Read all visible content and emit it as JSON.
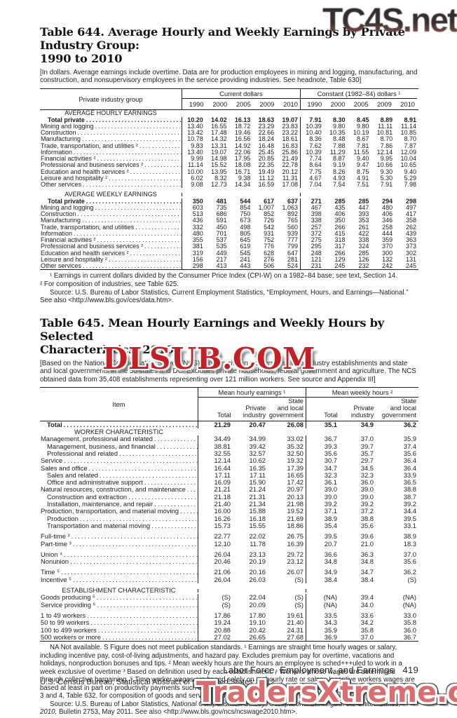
{
  "watermarks": {
    "top": "TC4S.net",
    "middle": "DLSUB.COM",
    "bottom": "TradersXtreme.com"
  },
  "page": {
    "footer_right": "Labor Force, Employment, and Earnings",
    "page_number": "419",
    "footer_left": "U.S. Census Bureau, Statistical Abstract of the United States: 2012"
  },
  "table644": {
    "title_line1": "Table 644. Average Hourly and Weekly Earnings by Private Industry Group:",
    "title_line2": "1990 to 2010",
    "headnote": "[In dollars. Average earnings include overtime. Data are for production employees in mining and logging, manufacturing, and construction, and nonsupervisory employees in the service providing industries. See headnote, Table 630]",
    "stub_header": "Private industry group",
    "group1": "Current dollars",
    "group2": "Constant (1982–84) dollars ¹",
    "years": [
      "1990",
      "2000",
      "2005",
      "2009",
      "2010"
    ],
    "sections": [
      {
        "header": "AVERAGE HOURLY EARNINGS",
        "rows": [
          {
            "label": "Total private",
            "bold": true,
            "indent": true,
            "values": [
              "10.20",
              "14.02",
              "16.13",
              "18.63",
              "19.07",
              "7.91",
              "8.30",
              "8.45",
              "8.89",
              "8.91"
            ]
          },
          {
            "label": "Mining and logging",
            "values": [
              "13.40",
              "16.55",
              "18.72",
              "23.29",
              "23.83",
              "10.39",
              "9.80",
              "9.80",
              "11.11",
              "11.14"
            ]
          },
          {
            "label": "Construction",
            "values": [
              "13.42",
              "17.48",
              "19.46",
              "22.66",
              "23.22",
              "10.40",
              "10.35",
              "10.19",
              "10.81",
              "10.85"
            ]
          },
          {
            "label": "Manufacturing",
            "values": [
              "10.78",
              "14.32",
              "16.56",
              "18.24",
              "18.61",
              "8.36",
              "8.48",
              "8.67",
              "8.70",
              "8.70"
            ]
          },
          {
            "label": "Trade, transportation, and utilities ²",
            "values": [
              "9.83",
              "13.31",
              "14.92",
              "16.48",
              "16.83",
              "7.62",
              "7.88",
              "7.81",
              "7.86",
              "7.87"
            ]
          },
          {
            "label": "Information",
            "values": [
              "13.40",
              "19.07",
              "22.06",
              "25.45",
              "25.86",
              "10.39",
              "11.29",
              "11.55",
              "12.14",
              "12.09"
            ]
          },
          {
            "label": "Financial activities ²",
            "values": [
              "9.99",
              "14.98",
              "17.95",
              "20.85",
              "21.49",
              "7.74",
              "8.87",
              "9.40",
              "9.95",
              "10.04"
            ]
          },
          {
            "label": "Professional and business services ²",
            "values": [
              "11.14",
              "15.52",
              "18.08",
              "22.35",
              "22.78",
              "8.64",
              "9.19",
              "9.47",
              "10.66",
              "10.65"
            ]
          },
          {
            "label": "Education and health services ²",
            "values": [
              "10.00",
              "13.95",
              "16.71",
              "19.49",
              "20.12",
              "7.75",
              "8.26",
              "8.75",
              "9.30",
              "9.40"
            ]
          },
          {
            "label": "Leisure and hospitality ²",
            "values": [
              "6.02",
              "8.32",
              "9.38",
              "11.12",
              "11.31",
              "4.67",
              "4.93",
              "4.91",
              "5.30",
              "5.29"
            ]
          },
          {
            "label": "Other services",
            "values": [
              "9.08",
              "12.73",
              "14.34",
              "16.59",
              "17.08",
              "7.04",
              "7.54",
              "7.51",
              "7.91",
              "7.98"
            ]
          }
        ]
      },
      {
        "header": "AVERAGE WEEKLY EARNINGS",
        "gap": true,
        "rows": [
          {
            "label": "Total private",
            "bold": true,
            "indent": true,
            "values": [
              "350",
              "481",
              "544",
              "617",
              "637",
              "271",
              "285",
              "285",
              "294",
              "298"
            ]
          },
          {
            "label": "Mining and logging",
            "values": [
              "603",
              "735",
              "854",
              "1,007",
              "1,063",
              "467",
              "435",
              "447",
              "480",
              "497"
            ]
          },
          {
            "label": "Construction",
            "values": [
              "513",
              "686",
              "750",
              "852",
              "892",
              "398",
              "406",
              "393",
              "406",
              "417"
            ]
          },
          {
            "label": "Manufacturing",
            "values": [
              "436",
              "591",
              "673",
              "726",
              "765",
              "338",
              "350",
              "353",
              "346",
              "358"
            ]
          },
          {
            "label": "Trade, transportation, and utilities",
            "values": [
              "332",
              "450",
              "498",
              "542",
              "560",
              "257",
              "266",
              "261",
              "258",
              "262"
            ]
          },
          {
            "label": "Information",
            "values": [
              "480",
              "701",
              "805",
              "931",
              "939",
              "372",
              "415",
              "422",
              "444",
              "439"
            ]
          },
          {
            "label": "Financial activities ²",
            "values": [
              "355",
              "537",
              "645",
              "752",
              "777",
              "275",
              "318",
              "338",
              "359",
              "363"
            ]
          },
          {
            "label": "Professional and business services ²",
            "values": [
              "381",
              "535",
              "619",
              "776",
              "799",
              "295",
              "317",
              "324",
              "370",
              "373"
            ]
          },
          {
            "label": "Education and health services ²",
            "values": [
              "319",
              "449",
              "545",
              "628",
              "647",
              "248",
              "266",
              "285",
              "300",
              "302"
            ]
          },
          {
            "label": "Leisure and hospitality ²",
            "values": [
              "156",
              "217",
              "241",
              "276",
              "281",
              "121",
              "129",
              "126",
              "132",
              "131"
            ]
          },
          {
            "label": "Other services",
            "values": [
              "298",
              "413",
              "443",
              "506",
              "524",
              "231",
              "245",
              "232",
              "242",
              "245"
            ]
          }
        ]
      }
    ],
    "footnotes": {
      "fn1": "¹ Earnings in current dollars divided by the Consumer Price Index (CPI-W) on a 1982–84 base; see text, Section 14.",
      "fn2": "² For composition of industries, see Table 625.",
      "source": "Source: U.S. Bureau of Labor Statistics, Current Employment Statistics, “Employment, Hours, and Earnings—National.” See also <http://www.bls.gov/ces/data.htm>."
    }
  },
  "table645": {
    "title_line1": "Table 645. Mean Hourly Earnings and Weekly Hours by Selected",
    "title_line2": "Characteristics: 2010",
    "headnote": "[Based on the National Compensation Survey (NCS). Covers civilian workers in private industry establishments and state and local governments in the 50 states and DC. Excludes private households, federal government and agriculture. The NCS obtained data from 35,408 establishments representing over 121 million workers. See source and Appendix III]",
    "stub_header": "Item",
    "group1": "Mean hourly earnings ¹",
    "group2": "Mean weekly hours ²",
    "sub_headers": [
      "Total",
      "Private\nindustry",
      "State\nand local\ngovernment",
      "Total",
      "Private\nindustry",
      "State\nand local\ngovernment"
    ],
    "sections": [
      {
        "rows": [
          {
            "label": "Total",
            "bold": true,
            "indent": true,
            "values": [
              "21.29",
              "20.47",
              "26.08",
              "35.1",
              "34.9",
              "36.2"
            ]
          }
        ]
      },
      {
        "header": "WORKER CHARACTERISTIC",
        "rows": [
          {
            "label": "Management, professional and related",
            "values": [
              "34.49",
              "34.99",
              "33.02",
              "36.7",
              "37.0",
              "35.9"
            ]
          },
          {
            "label": "Management, business, and financial",
            "indent": true,
            "values": [
              "38.81",
              "39.42",
              "35.32",
              "39.3",
              "39.7",
              "37.4"
            ]
          },
          {
            "label": "Professional and related",
            "indent": true,
            "values": [
              "32.55",
              "32.57",
              "32.50",
              "35.6",
              "35.7",
              "35.6"
            ]
          },
          {
            "label": "Service",
            "values": [
              "12.14",
              "10.62",
              "19.32",
              "30.7",
              "29.7",
              "36.4"
            ]
          },
          {
            "label": "Sales and office",
            "values": [
              "16.44",
              "16.35",
              "17.39",
              "34.7",
              "34.5",
              "36.4"
            ]
          },
          {
            "label": "Sales and related",
            "indent": true,
            "values": [
              "17.11",
              "17.11",
              "16.65",
              "32.3",
              "32.3",
              "33.9"
            ]
          },
          {
            "label": "Office and administrative support",
            "indent": true,
            "values": [
              "16.09",
              "15.90",
              "17.42",
              "36.1",
              "36.0",
              "36.5"
            ]
          },
          {
            "label": "Natural resources, construction, and maintenance",
            "values": [
              "21.21",
              "21.24",
              "20.97",
              "39.0",
              "39.0",
              "38.8"
            ]
          },
          {
            "label": "Construction and extraction",
            "indent": true,
            "values": [
              "21.18",
              "21.31",
              "20.13",
              "39.0",
              "39.0",
              "38.7"
            ]
          },
          {
            "label": "Installation, maintenance, and repair",
            "indent": true,
            "values": [
              "21.40",
              "21.34",
              "21.98",
              "39.2",
              "39.2",
              "39.2"
            ]
          },
          {
            "label": "Production, transportation, and material moving",
            "values": [
              "16.00",
              "15.88",
              "19.52",
              "37.1",
              "37.2",
              "34.4"
            ]
          },
          {
            "label": "Production",
            "indent": true,
            "values": [
              "16.26",
              "16.18",
              "21.69",
              "38.9",
              "38.8",
              "39.5"
            ]
          },
          {
            "label": "Transportation and material moving",
            "indent": true,
            "values": [
              "15.73",
              "15.55",
              "18.86",
              "35.4",
              "35.6",
              "33.1"
            ]
          },
          {
            "label": "Full-time ³",
            "gap": true,
            "values": [
              "22.77",
              "22.02",
              "26.75",
              "39.5",
              "39.6",
              "38.9"
            ]
          },
          {
            "label": "Part-time ³",
            "values": [
              "12.10",
              "11.78",
              "16.39",
              "20.7",
              "21.0",
              "18.3"
            ]
          },
          {
            "label": "Union ⁴",
            "gap": true,
            "values": [
              "26.04",
              "23.13",
              "29.72",
              "36.6",
              "36.3",
              "37.0"
            ]
          },
          {
            "label": "Nonunion",
            "values": [
              "20.46",
              "20.19",
              "23.12",
              "34.8",
              "34.8",
              "35.6"
            ]
          },
          {
            "label": "Time ⁵",
            "gap": true,
            "values": [
              "21.06",
              "20.16",
              "26.07",
              "34.9",
              "34.7",
              "36.2"
            ]
          },
          {
            "label": "Incentive ⁵",
            "values": [
              "26.04",
              "26.03",
              "(S)",
              "38.4",
              "38.4",
              "(S)"
            ]
          }
        ]
      },
      {
        "header": "ESTABLISHMENT CHARACTERISTIC",
        "gap": true,
        "rows": [
          {
            "label": "Goods producing ⁶",
            "values": [
              "(S)",
              "22.04",
              "(S)",
              "(NA)",
              "39.4",
              "(NA)"
            ]
          },
          {
            "label": "Service providing ⁶",
            "values": [
              "(S)",
              "20.09",
              "(S)",
              "(NA)",
              "34.0",
              "(NA)"
            ]
          },
          {
            "label": "1 to 49 workers",
            "gap": true,
            "values": [
              "17.86",
              "17.80",
              "19.61",
              "33.5",
              "33.6",
              "33.0"
            ]
          },
          {
            "label": "50 to 99 workers",
            "values": [
              "19.24",
              "19.10",
              "21.40",
              "34.3",
              "34.2",
              "35.8"
            ]
          },
          {
            "label": "100 to 499 workers",
            "values": [
              "20.88",
              "20.42",
              "24.31",
              "35.9",
              "35.8",
              "36.0"
            ]
          },
          {
            "label": "500 workers or more",
            "values": [
              "27.02",
              "26.65",
              "27.68",
              "36.9",
              "37.0",
              "36.7"
            ]
          }
        ]
      }
    ],
    "footnotes": {
      "notes": "NA Not available. S Figure does not meet publication standards. ¹ Earnings are straight time hourly wages or salary, including incentive pay, cost-of-living adjustments, and hazard pay. Excludes premium pay for overtime, vacations and holidays, nonproduction bonuses and tips. ² Mean weekly hours are the hours an employee is sched+++uled to work in a week exclusive of overtime ³ Based on definition used by each establishment. ⁴ Workers whose wages are determined through collective bargaining. ⁵ Time worker wages are based solely on an hourly rate or salary. Incentive workers wages are based at least in part on productivity payments such as piece rates or commissions. ⁶ For private industry only. See footnotes 3 and 4, Table 632, for composition of goods and service producing industries.",
      "source_prefix": "Source: U.S. Bureau of Labor Statistics, ",
      "source_italic": "National Compensation Survey: Occupational Earnings in the United States, 2010,",
      "source_suffix": " Bulletin 2753, May 2011. See also <http://www.bls.gov/ncs/ncswage2010.htm>."
    }
  }
}
